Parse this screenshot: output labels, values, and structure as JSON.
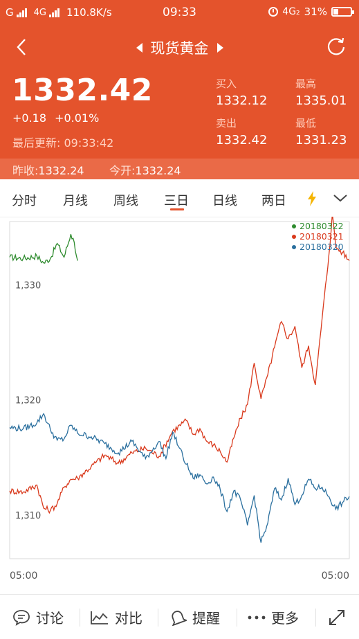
{
  "status": {
    "signal1": "G",
    "signal2": "4G",
    "speed": "110.8K/s",
    "time": "09:33",
    "net": "4G₂",
    "battery": "31%",
    "battery_level": 0.31
  },
  "header": {
    "title": "现货黄金"
  },
  "quote": {
    "price": "1332.42",
    "change": "+0.18",
    "change_pct": "+0.01%",
    "updated_label": "最后更新:",
    "updated_time": "09:33:42",
    "buy_label": "买入",
    "buy_value": "1332.12",
    "high_label": "最高",
    "high_value": "1335.01",
    "sell_label": "卖出",
    "sell_value": "1332.42",
    "low_label": "最低",
    "low_value": "1331.23",
    "prev_close_label": "昨收:",
    "prev_close_value": "1332.24",
    "open_label": "今开:",
    "open_value": "1332.24"
  },
  "tabs": [
    "分时",
    "月线",
    "周线",
    "三日",
    "日线",
    "两日"
  ],
  "active_tab": 3,
  "chart_data": {
    "type": "line",
    "x_start_label": "05:00",
    "x_end_label": "05:00",
    "ylim": [
      1306.2,
      1335.5
    ],
    "yticks": [
      1310,
      1320,
      1330
    ],
    "ytick_labels": [
      "1,310",
      "1,320",
      "1,330"
    ],
    "legend_position": "top-right",
    "series": [
      {
        "name": "20180322",
        "color": "#2e8b2e",
        "x": [
          0,
          4,
          8,
          10,
          12,
          14,
          16,
          18,
          19,
          20
        ],
        "y": [
          1332.4,
          1332.3,
          1332.5,
          1331.9,
          1332.3,
          1333.6,
          1332.4,
          1334.4,
          1333.7,
          1332.1
        ]
      },
      {
        "name": "20180321",
        "color": "#d9391c",
        "x": [
          0,
          4,
          8,
          10,
          12,
          14,
          16,
          18,
          20,
          24,
          28,
          32,
          36,
          40,
          44,
          48,
          52,
          54,
          56,
          58,
          60,
          62,
          64,
          66,
          68,
          70,
          72,
          74,
          76,
          78,
          80,
          82,
          84,
          86,
          88,
          90,
          92,
          94,
          95,
          96,
          98,
          100
        ],
        "y": [
          1312.1,
          1312.0,
          1312.6,
          1310.6,
          1310.4,
          1311.0,
          1312.4,
          1313.1,
          1313.2,
          1314.2,
          1315.2,
          1314.5,
          1315.4,
          1315.8,
          1315.1,
          1317.3,
          1318.2,
          1317.0,
          1317.5,
          1316.4,
          1316.1,
          1315.5,
          1314.6,
          1316.7,
          1318.4,
          1319.6,
          1323.2,
          1320.1,
          1322.2,
          1324.6,
          1326.8,
          1325.3,
          1326.4,
          1322.8,
          1324.7,
          1321.3,
          1327.1,
          1332.6,
          1336.2,
          1333.3,
          1332.8,
          1332.1
        ]
      },
      {
        "name": "20180320",
        "color": "#2a6f9e",
        "x": [
          0,
          4,
          8,
          10,
          12,
          14,
          16,
          18,
          20,
          24,
          28,
          32,
          36,
          40,
          44,
          46,
          48,
          50,
          52,
          54,
          56,
          58,
          60,
          62,
          64,
          66,
          68,
          70,
          72,
          74,
          76,
          78,
          80,
          82,
          84,
          86,
          88,
          90,
          92,
          94,
          96,
          98,
          100
        ],
        "y": [
          1317.6,
          1317.5,
          1318.0,
          1318.8,
          1317.4,
          1316.5,
          1316.6,
          1317.8,
          1317.1,
          1316.8,
          1316.2,
          1315.4,
          1316.4,
          1314.9,
          1316.4,
          1314.9,
          1317.2,
          1315.8,
          1314.4,
          1313.2,
          1313.5,
          1312.7,
          1313.3,
          1312.2,
          1310.3,
          1312.1,
          1311.3,
          1309.1,
          1311.7,
          1307.6,
          1309.3,
          1312.3,
          1311.3,
          1313.2,
          1310.9,
          1311.7,
          1313.1,
          1312.3,
          1312.4,
          1311.6,
          1310.5,
          1311.1,
          1311.6
        ]
      }
    ]
  },
  "bottom": {
    "discuss": "讨论",
    "compare": "对比",
    "alert": "提醒",
    "more": "更多"
  },
  "colors": {
    "brand": "#e4532c"
  }
}
